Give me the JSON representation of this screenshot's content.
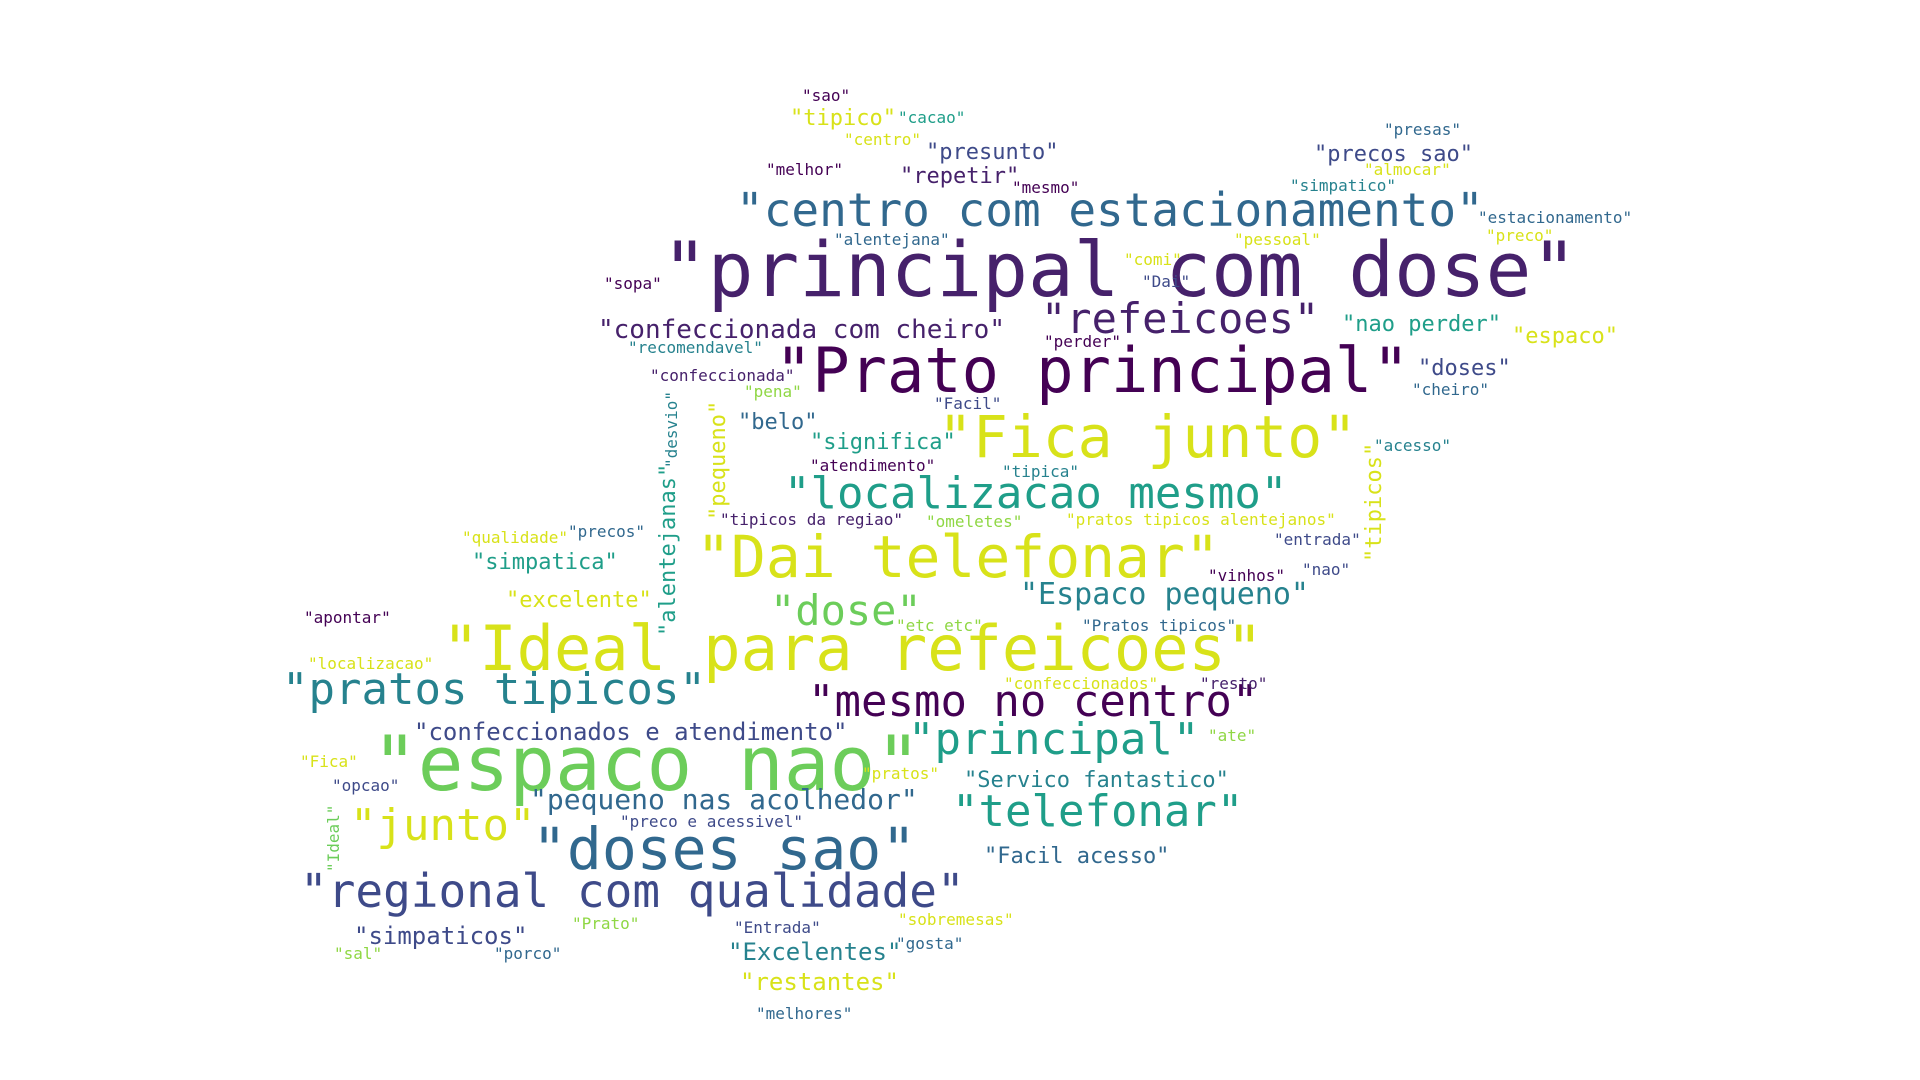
{
  "palette": {
    "purple": "#46216b",
    "indigo": "#3e4a89",
    "blue": "#31688e",
    "teal": "#26828e",
    "green": "#1f9e89",
    "lime": "#6ccd5a",
    "yellow": "#d8e219",
    "lightgreen": "#8fd744",
    "darkpurple": "#440154"
  },
  "words": [
    {
      "id": "w01",
      "text": "\"principal com dose\""
    },
    {
      "id": "w02",
      "text": "\"Prato principal\""
    },
    {
      "id": "w03",
      "text": "\"centro com estacionamento\""
    },
    {
      "id": "w04",
      "text": "\"refeicoes\""
    },
    {
      "id": "w05",
      "text": "\"confeccionada com cheiro\""
    },
    {
      "id": "w06",
      "text": "\"Fica junto\""
    },
    {
      "id": "w07",
      "text": "\"localizacao mesmo\""
    },
    {
      "id": "w08",
      "text": "\"Dai telefonar\""
    },
    {
      "id": "w09",
      "text": "\"Ideal para refeicoes\""
    },
    {
      "id": "w10",
      "text": "\"espaco nao\""
    },
    {
      "id": "w11",
      "text": "\"pratos tipicos\""
    },
    {
      "id": "w12",
      "text": "\"mesmo no centro\""
    },
    {
      "id": "w13",
      "text": "\"doses sao\""
    },
    {
      "id": "w14",
      "text": "\"regional com qualidade\""
    },
    {
      "id": "w15",
      "text": "\"principal\""
    },
    {
      "id": "w16",
      "text": "\"telefonar\""
    },
    {
      "id": "w17",
      "text": "\"junto\""
    },
    {
      "id": "w18",
      "text": "\"dose\""
    },
    {
      "id": "w19",
      "text": "\"Espaco pequeno\""
    },
    {
      "id": "w20",
      "text": "\"pequeno nas acolhedor\""
    },
    {
      "id": "w21",
      "text": "\"confeccionados e atendimento\""
    },
    {
      "id": "w22",
      "text": "\"Servico fantastico\""
    },
    {
      "id": "w23",
      "text": "\"Facil acesso\""
    },
    {
      "id": "w24",
      "text": "\"simpaticos\""
    },
    {
      "id": "w25",
      "text": "\"Excelentes\""
    },
    {
      "id": "w26",
      "text": "\"restantes\""
    },
    {
      "id": "w27",
      "text": "\"melhores\""
    },
    {
      "id": "w28",
      "text": "\"sobremesas\""
    },
    {
      "id": "w29",
      "text": "\"gosta\""
    },
    {
      "id": "w30",
      "text": "\"Entrada\""
    },
    {
      "id": "w31",
      "text": "\"Prato\""
    },
    {
      "id": "w32",
      "text": "\"porco\""
    },
    {
      "id": "w33",
      "text": "\"sal\""
    },
    {
      "id": "w34",
      "text": "\"preco e acessivel\""
    },
    {
      "id": "w35",
      "text": "\"opcao\""
    },
    {
      "id": "w36",
      "text": "\"Fica\""
    },
    {
      "id": "w37",
      "text": "\"pratos\""
    },
    {
      "id": "w38",
      "text": "\"localizacao\""
    },
    {
      "id": "w39",
      "text": "\"apontar\""
    },
    {
      "id": "w40",
      "text": "\"excelente\""
    },
    {
      "id": "w41",
      "text": "\"simpatica\""
    },
    {
      "id": "w42",
      "text": "\"qualidade\""
    },
    {
      "id": "w43",
      "text": "\"precos\""
    },
    {
      "id": "w44",
      "text": "\"tipicos da regiao\""
    },
    {
      "id": "w45",
      "text": "\"omeletes\""
    },
    {
      "id": "w46",
      "text": "\"pratos tipicos alentejanos\""
    },
    {
      "id": "w47",
      "text": "\"entrada\""
    },
    {
      "id": "w48",
      "text": "\"nao\""
    },
    {
      "id": "w49",
      "text": "\"vinhos\""
    },
    {
      "id": "w50",
      "text": "\"etc etc\""
    },
    {
      "id": "w51",
      "text": "\"Pratos tipicos\""
    },
    {
      "id": "w52",
      "text": "\"confeccionados\""
    },
    {
      "id": "w53",
      "text": "\"resto\""
    },
    {
      "id": "w54",
      "text": "\"ate\""
    },
    {
      "id": "w55",
      "text": "\"belo\""
    },
    {
      "id": "w56",
      "text": "\"significa\""
    },
    {
      "id": "w57",
      "text": "\"atendimento\""
    },
    {
      "id": "w58",
      "text": "\"tipica\""
    },
    {
      "id": "w59",
      "text": "\"Facil\""
    },
    {
      "id": "w60",
      "text": "\"pena\""
    },
    {
      "id": "w61",
      "text": "\"confeccionada\""
    },
    {
      "id": "w62",
      "text": "\"recomendavel\""
    },
    {
      "id": "w63",
      "text": "\"perder\""
    },
    {
      "id": "w64",
      "text": "\"nao perder\""
    },
    {
      "id": "w65",
      "text": "\"espaco\""
    },
    {
      "id": "w66",
      "text": "\"doses\""
    },
    {
      "id": "w67",
      "text": "\"cheiro\""
    },
    {
      "id": "w68",
      "text": "\"acesso\""
    },
    {
      "id": "w69",
      "text": "\"sopa\""
    },
    {
      "id": "w70",
      "text": "\"comi\""
    },
    {
      "id": "w71",
      "text": "\"Dai\""
    },
    {
      "id": "w72",
      "text": "\"alentejana\""
    },
    {
      "id": "w73",
      "text": "\"pessoal\""
    },
    {
      "id": "w74",
      "text": "\"preco\""
    },
    {
      "id": "w75",
      "text": "\"estacionamento\""
    },
    {
      "id": "w76",
      "text": "\"simpatico\""
    },
    {
      "id": "w77",
      "text": "\"almocar\""
    },
    {
      "id": "w78",
      "text": "\"precos sao\""
    },
    {
      "id": "w79",
      "text": "\"presas\""
    },
    {
      "id": "w80",
      "text": "\"presunto\""
    },
    {
      "id": "w81",
      "text": "\"repetir\""
    },
    {
      "id": "w82",
      "text": "\"mesmo\""
    },
    {
      "id": "w83",
      "text": "\"melhor\""
    },
    {
      "id": "w84",
      "text": "\"centro\""
    },
    {
      "id": "w85",
      "text": "\"tipico\""
    },
    {
      "id": "w86",
      "text": "\"cacao\""
    },
    {
      "id": "w87",
      "text": "\"sao\""
    },
    {
      "id": "w88",
      "text": "\"alentejanas\""
    },
    {
      "id": "w89",
      "text": "\"desvio\""
    },
    {
      "id": "w90",
      "text": "\"pequeno\""
    },
    {
      "id": "w91",
      "text": "\"tipicos\""
    },
    {
      "id": "w92",
      "text": "\"Ideal\""
    }
  ]
}
